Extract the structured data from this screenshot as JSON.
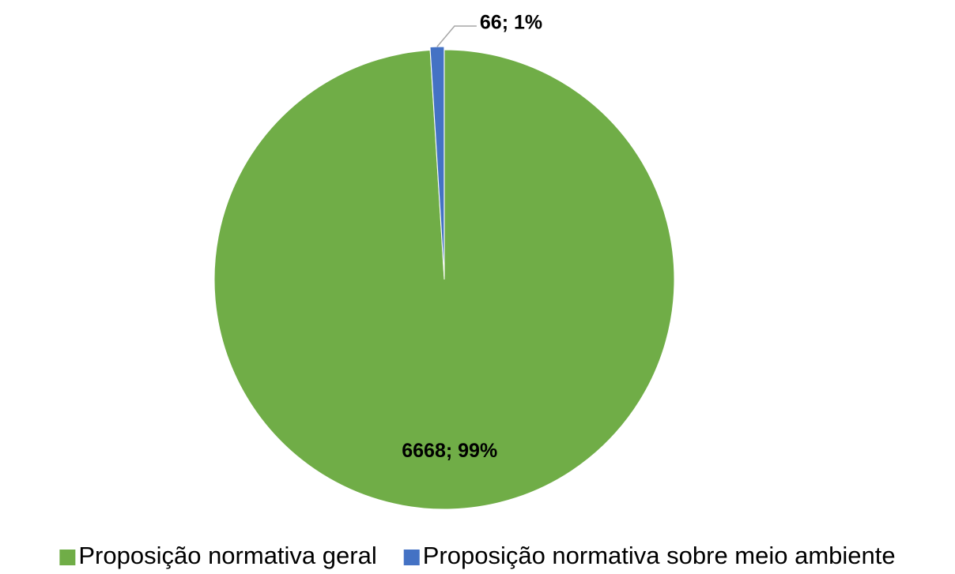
{
  "chart_data": {
    "type": "pie",
    "categories": [
      "Proposição normativa geral",
      "Proposição normativa sobre meio ambiente"
    ],
    "values": [
      6668,
      66
    ],
    "value_labels": [
      "6668; 99%",
      "66; 1%"
    ],
    "colors": [
      "#70ad47",
      "#4472c4"
    ],
    "legend": "bottom"
  }
}
